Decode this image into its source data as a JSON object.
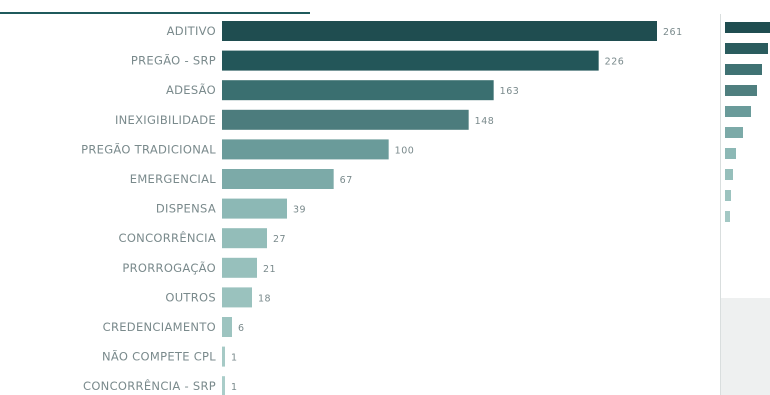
{
  "chart_data": {
    "type": "bar",
    "orientation": "horizontal",
    "title": "",
    "xlabel": "",
    "ylabel": "",
    "grid": false,
    "legend": "none",
    "categories": [
      "ADITIVO",
      "PREGÃO - SRP",
      "ADESÃO",
      "INEXIGIBILIDADE",
      "PREGÃO TRADICIONAL",
      "EMERGENCIAL",
      "DISPENSA",
      "CONCORRÊNCIA",
      "PRORROGAÇÃO",
      "OUTROS",
      "CREDENCIAMENTO",
      "NÃO COMPETE CPL",
      "CONCORRÊNCIA - SRP"
    ],
    "values": [
      261,
      226,
      163,
      148,
      100,
      67,
      39,
      27,
      21,
      18,
      6,
      1,
      1
    ],
    "value_labels": [
      "261",
      "226",
      "163",
      "148",
      "100",
      "67",
      "39",
      "27",
      "21",
      "18",
      "6",
      "1",
      "1"
    ],
    "xlim": [
      0,
      261
    ],
    "colors": [
      "#1f4d50",
      "#235659",
      "#3a6f70",
      "#4c7c7d",
      "#6a9b9a",
      "#7caaa8",
      "#8cb8b5",
      "#93bdb9",
      "#97c0bc",
      "#9ac2be",
      "#9dc4c0",
      "#a6cac6",
      "#aacdc9"
    ]
  },
  "side_panel": {
    "bar_values": [
      30,
      28,
      24,
      21,
      17,
      12,
      7,
      5,
      4,
      3
    ],
    "colors": [
      "#1f4d50",
      "#2a5c5e",
      "#3f7273",
      "#4f7f7f",
      "#6a9b9a",
      "#7caaa8",
      "#8cb8b5",
      "#96bfbb",
      "#9cc3bf",
      "#a3c8c4"
    ]
  }
}
